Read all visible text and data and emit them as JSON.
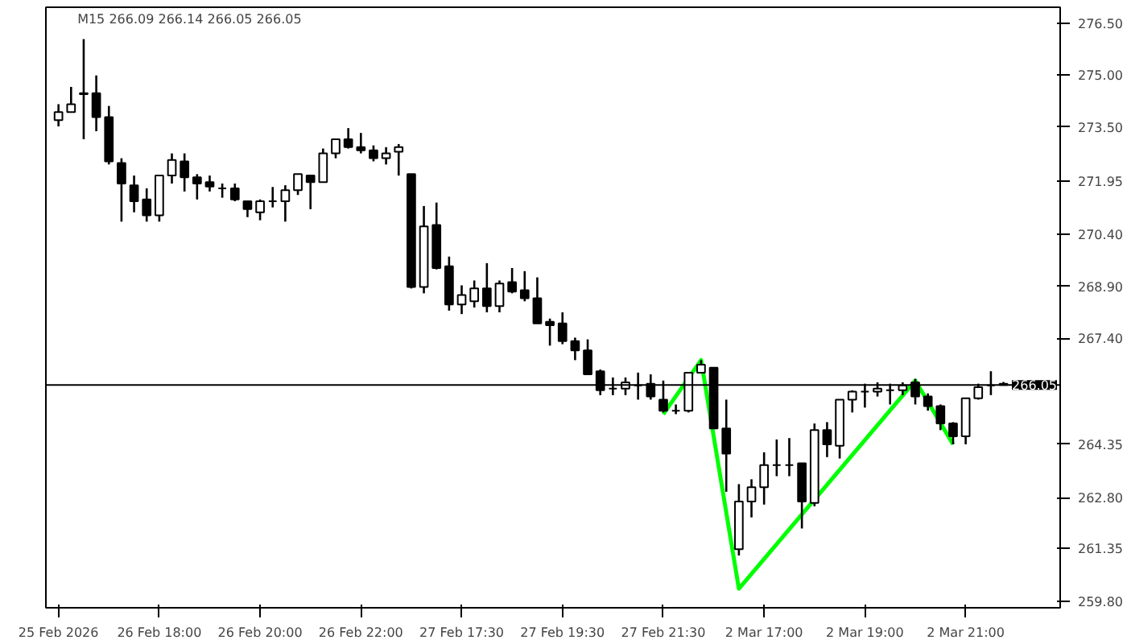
{
  "chart_data": {
    "type": "candlestick",
    "title": "M15  266.09 266.14 266.05 266.05",
    "categories": [
      "25 Feb 2026",
      null,
      null,
      null,
      null,
      null,
      null,
      null,
      "26 Feb 18:00",
      null,
      null,
      null,
      null,
      null,
      null,
      null,
      "26 Feb 20:00",
      null,
      null,
      null,
      null,
      null,
      null,
      null,
      "26 Feb 22:00",
      null,
      null,
      null,
      null,
      null,
      null,
      null,
      "27 Feb 17:30",
      null,
      null,
      null,
      null,
      null,
      null,
      null,
      "27 Feb 19:30",
      null,
      null,
      null,
      null,
      null,
      null,
      null,
      "27 Feb 21:30",
      null,
      null,
      null,
      null,
      null,
      null,
      null,
      "2 Mar 17:00",
      null,
      null,
      null,
      null,
      null,
      null,
      null,
      "2 Mar 19:00",
      null,
      null,
      null,
      null,
      null,
      null,
      null,
      "2 Mar 21:00",
      null,
      null,
      null
    ],
    "ohlc": [
      [
        273.7,
        274.16,
        273.52,
        273.93
      ],
      [
        273.93,
        274.66,
        273.93,
        274.16
      ],
      [
        274.48,
        276.04,
        273.15,
        274.45
      ],
      [
        274.48,
        274.99,
        273.38,
        273.79
      ],
      [
        273.79,
        274.11,
        272.42,
        272.51
      ],
      [
        272.46,
        272.6,
        270.77,
        271.87
      ],
      [
        271.82,
        272.1,
        271.04,
        271.36
      ],
      [
        271.41,
        271.73,
        270.77,
        270.95
      ],
      [
        270.95,
        272.1,
        270.77,
        272.1
      ],
      [
        272.1,
        272.74,
        271.87,
        272.55
      ],
      [
        272.51,
        272.74,
        271.64,
        272.05
      ],
      [
        272.05,
        272.14,
        271.41,
        271.87
      ],
      [
        271.91,
        272.1,
        271.64,
        271.78
      ],
      [
        271.73,
        271.87,
        271.46,
        271.73
      ],
      [
        271.73,
        271.87,
        271.36,
        271.41
      ],
      [
        271.36,
        271.36,
        270.9,
        271.13
      ],
      [
        271.04,
        271.41,
        270.81,
        271.36
      ],
      [
        271.36,
        271.77,
        271.18,
        271.36
      ],
      [
        271.36,
        271.82,
        270.77,
        271.68
      ],
      [
        271.68,
        272.14,
        271.54,
        272.14
      ],
      [
        272.1,
        272.1,
        271.13,
        271.91
      ],
      [
        271.91,
        272.88,
        271.91,
        272.74
      ],
      [
        272.74,
        273.15,
        272.6,
        273.15
      ],
      [
        273.15,
        273.47,
        272.88,
        272.92
      ],
      [
        272.92,
        273.33,
        272.74,
        272.83
      ],
      [
        272.83,
        272.97,
        272.51,
        272.6
      ],
      [
        272.6,
        272.92,
        272.42,
        272.74
      ],
      [
        272.79,
        273.01,
        272.1,
        272.92
      ],
      [
        272.14,
        272.14,
        268.84,
        268.88
      ],
      [
        268.88,
        271.22,
        268.7,
        270.63
      ],
      [
        270.67,
        271.32,
        269.39,
        269.43
      ],
      [
        269.48,
        269.76,
        268.2,
        268.38
      ],
      [
        268.38,
        268.93,
        268.1,
        268.65
      ],
      [
        268.47,
        269.07,
        268.29,
        268.84
      ],
      [
        268.84,
        269.57,
        268.15,
        268.33
      ],
      [
        268.33,
        269.07,
        268.15,
        268.98
      ],
      [
        269.02,
        269.43,
        268.7,
        268.75
      ],
      [
        268.79,
        269.34,
        268.47,
        268.56
      ],
      [
        268.56,
        269.16,
        267.83,
        267.83
      ],
      [
        267.88,
        267.97,
        267.19,
        267.78
      ],
      [
        267.83,
        268.15,
        267.23,
        267.32
      ],
      [
        267.32,
        267.42,
        266.77,
        267.05
      ],
      [
        267.05,
        267.37,
        266.36,
        266.36
      ],
      [
        266.45,
        266.5,
        265.76,
        265.9
      ],
      [
        265.95,
        266.27,
        265.76,
        265.95
      ],
      [
        265.95,
        266.27,
        265.76,
        266.13
      ],
      [
        266.04,
        266.41,
        265.63,
        266.04
      ],
      [
        266.09,
        266.36,
        265.63,
        265.72
      ],
      [
        265.63,
        266.18,
        265.26,
        265.31
      ],
      [
        265.31,
        265.49,
        265.21,
        265.31
      ],
      [
        265.31,
        266.41,
        265.26,
        266.41
      ],
      [
        266.41,
        266.77,
        266.41,
        266.64
      ],
      [
        266.55,
        266.55,
        264.8,
        264.8
      ],
      [
        264.8,
        265.63,
        262.97,
        264.07
      ],
      [
        261.31,
        263.19,
        261.13,
        262.69
      ],
      [
        262.69,
        263.33,
        262.23,
        263.1
      ],
      [
        263.1,
        264.11,
        262.6,
        263.74
      ],
      [
        263.74,
        264.48,
        263.42,
        263.74
      ],
      [
        263.74,
        264.52,
        263.42,
        263.74
      ],
      [
        263.79,
        263.79,
        261.91,
        262.69
      ],
      [
        262.65,
        264.94,
        262.55,
        264.75
      ],
      [
        264.75,
        264.98,
        263.97,
        264.34
      ],
      [
        264.3,
        265.63,
        263.93,
        265.63
      ],
      [
        265.63,
        265.9,
        265.26,
        265.86
      ],
      [
        265.86,
        266.09,
        265.4,
        265.86
      ],
      [
        265.86,
        266.13,
        265.72,
        265.95
      ],
      [
        265.9,
        266.09,
        265.49,
        265.9
      ],
      [
        265.9,
        266.13,
        265.76,
        266.04
      ],
      [
        266.13,
        266.23,
        265.49,
        265.72
      ],
      [
        265.72,
        265.81,
        265.31,
        265.44
      ],
      [
        265.44,
        265.49,
        264.75,
        264.94
      ],
      [
        264.94,
        264.98,
        264.34,
        264.57
      ],
      [
        264.57,
        265.67,
        264.34,
        265.67
      ],
      [
        265.67,
        266.09,
        265.63,
        265.99
      ],
      [
        266.04,
        266.45,
        265.76,
        266.04
      ],
      [
        266.09,
        266.14,
        266.05,
        266.05
      ]
    ],
    "series": [
      {
        "type": "line",
        "color": "#00ff00",
        "values": [
          null,
          null,
          null,
          null,
          null,
          null,
          null,
          null,
          null,
          null,
          null,
          null,
          null,
          null,
          null,
          null,
          null,
          null,
          null,
          null,
          null,
          null,
          null,
          null,
          null,
          null,
          null,
          null,
          null,
          null,
          null,
          null,
          null,
          null,
          null,
          null,
          null,
          null,
          null,
          null,
          null,
          null,
          null,
          null,
          null,
          null,
          null,
          null,
          265.21,
          null,
          null,
          266.77,
          null,
          null,
          260.17,
          null,
          null,
          null,
          null,
          null,
          null,
          null,
          null,
          null,
          null,
          null,
          null,
          null,
          266.18,
          null,
          null,
          264.34,
          null,
          null,
          null,
          null
        ]
      }
    ],
    "ylim": [
      259.62,
      276.96
    ],
    "yticks": [
      {
        "value": 276.5,
        "label": "276.50"
      },
      {
        "value": 275.0,
        "label": "275.00"
      },
      {
        "value": 273.5,
        "label": "273.50"
      },
      {
        "value": 271.95,
        "label": "271.95"
      },
      {
        "value": 270.4,
        "label": "270.40"
      },
      {
        "value": 268.9,
        "label": "268.90"
      },
      {
        "value": 267.4,
        "label": "267.40"
      },
      {
        "value": 264.35,
        "label": "264.35"
      },
      {
        "value": 262.8,
        "label": "262.80"
      },
      {
        "value": 261.35,
        "label": "261.35"
      },
      {
        "value": 259.8,
        "label": "259.80"
      }
    ],
    "ref_lines": [
      {
        "axis": "y",
        "value": 266.05,
        "label": "266.05",
        "color": "#000000"
      }
    ],
    "grid": false
  }
}
